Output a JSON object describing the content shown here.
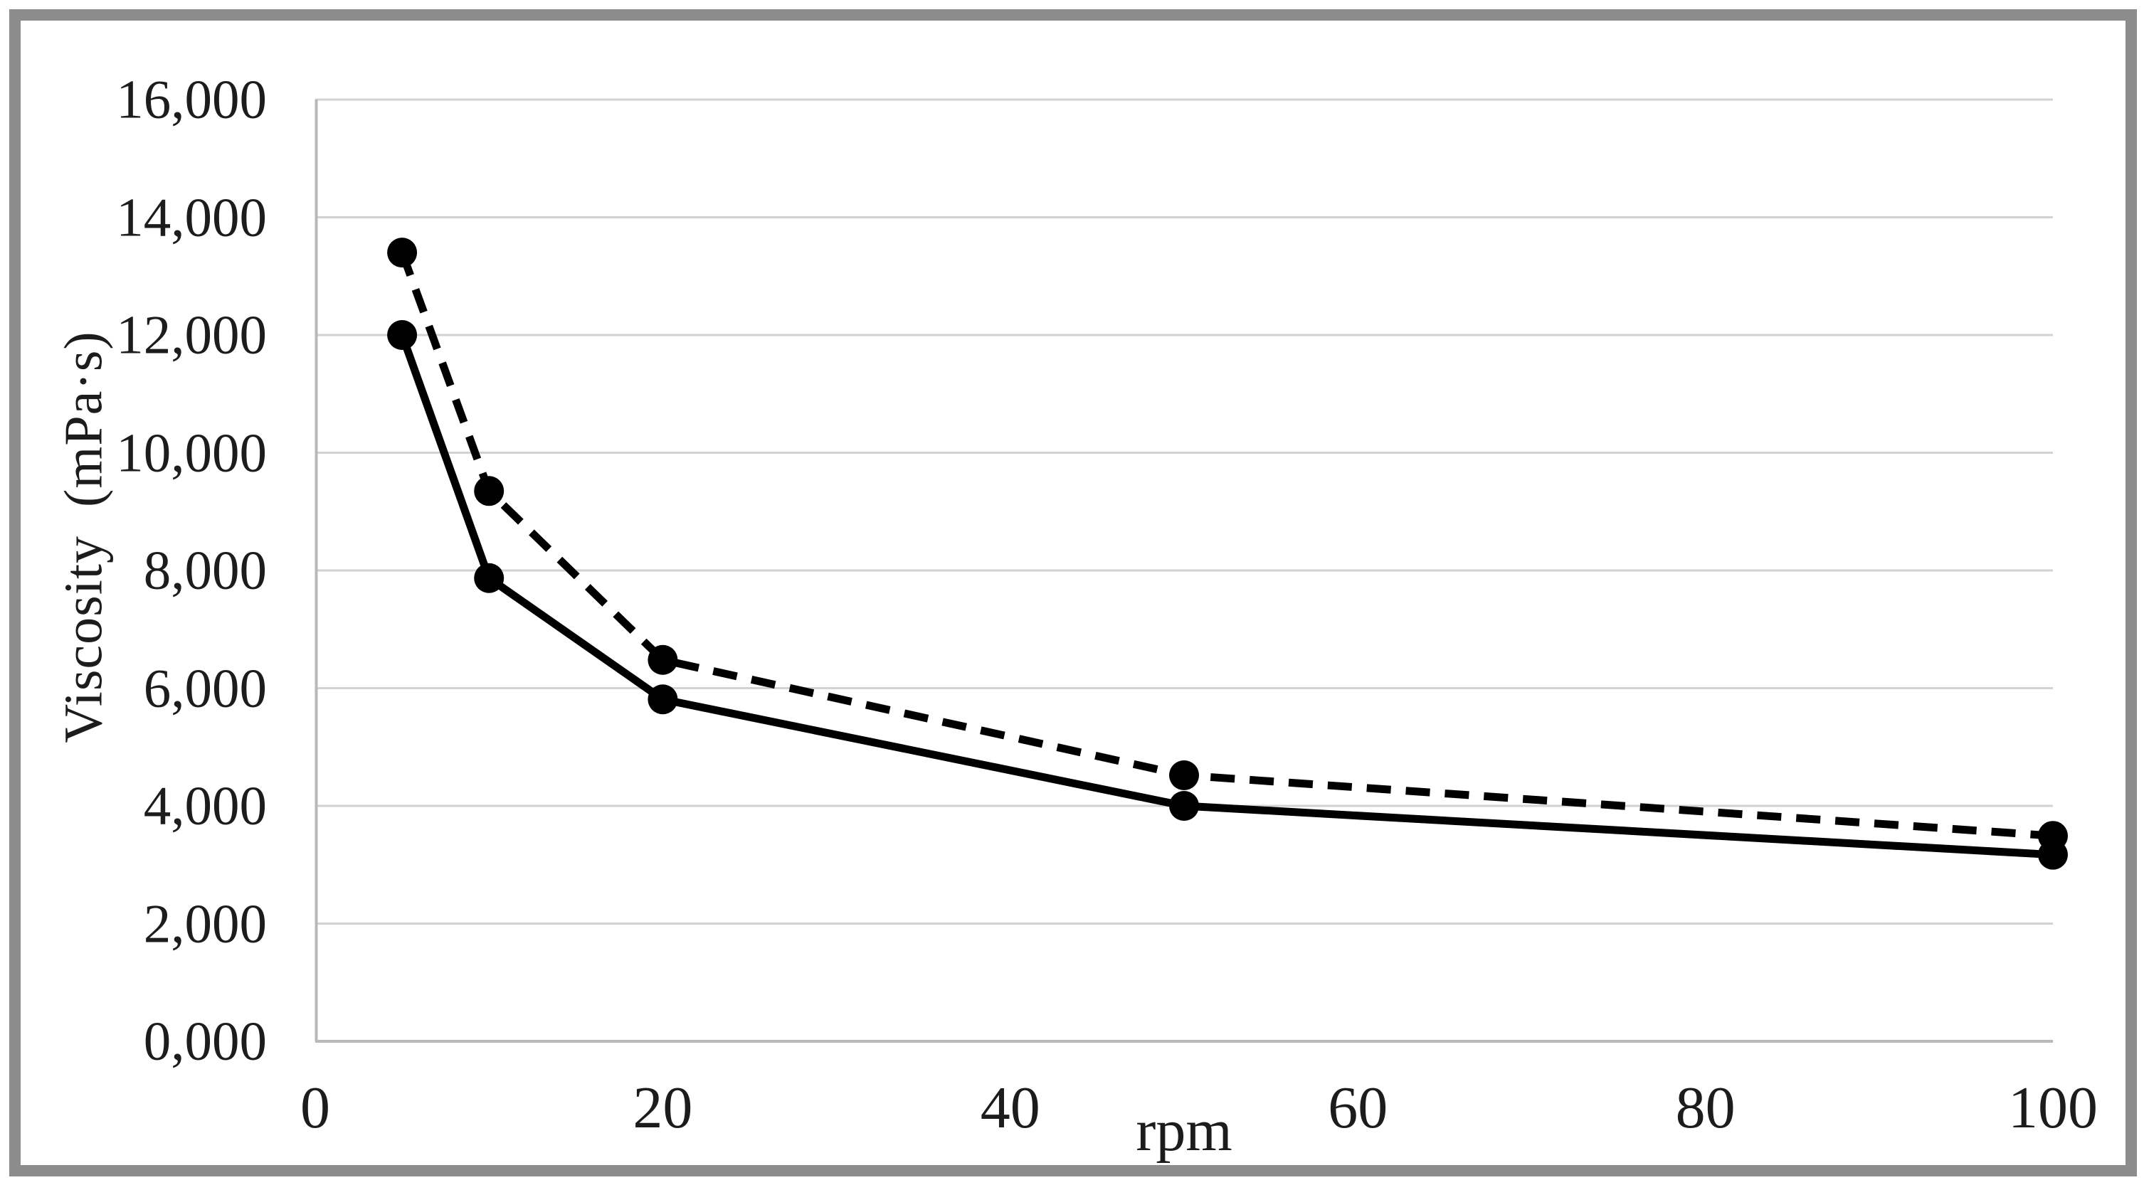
{
  "figure": {
    "background": "#ffffff",
    "frame_color": "#8c8c8c"
  },
  "chart_data": {
    "type": "line",
    "title": "",
    "xlabel": "rpm",
    "ylabel": "Viscosity  (mPa·s)",
    "xlim": [
      0,
      100
    ],
    "ylim": [
      0,
      16000
    ],
    "grid": "horizontal-only",
    "legend_position": "none",
    "x": [
      5,
      10,
      20,
      50,
      100
    ],
    "series": [
      {
        "name": "upper-dashed",
        "line_style": "dashed",
        "marker": "filled-circle",
        "color": "#000000",
        "values": [
          13400,
          9350,
          6480,
          4520,
          3490
        ]
      },
      {
        "name": "lower-solid",
        "line_style": "solid",
        "marker": "filled-circle",
        "color": "#000000",
        "values": [
          12000,
          7870,
          5810,
          4000,
          3170
        ]
      }
    ],
    "xtick_values": [
      0,
      20,
      40,
      60,
      80,
      100
    ],
    "xtick_labels": [
      "0",
      "20",
      "40",
      "60",
      "80",
      "100"
    ],
    "ytick_values": [
      0,
      2000,
      4000,
      6000,
      8000,
      10000,
      12000,
      14000,
      16000
    ],
    "ytick_labels": [
      "0,000",
      "2,000",
      "4,000",
      "6,000",
      "8,000",
      "10,000",
      "12,000",
      "14,000",
      "16,000"
    ],
    "gridline_color": "#d2d2d2",
    "axis_line_color": "#b8b8b8",
    "text_color": "#1c1c1c"
  }
}
